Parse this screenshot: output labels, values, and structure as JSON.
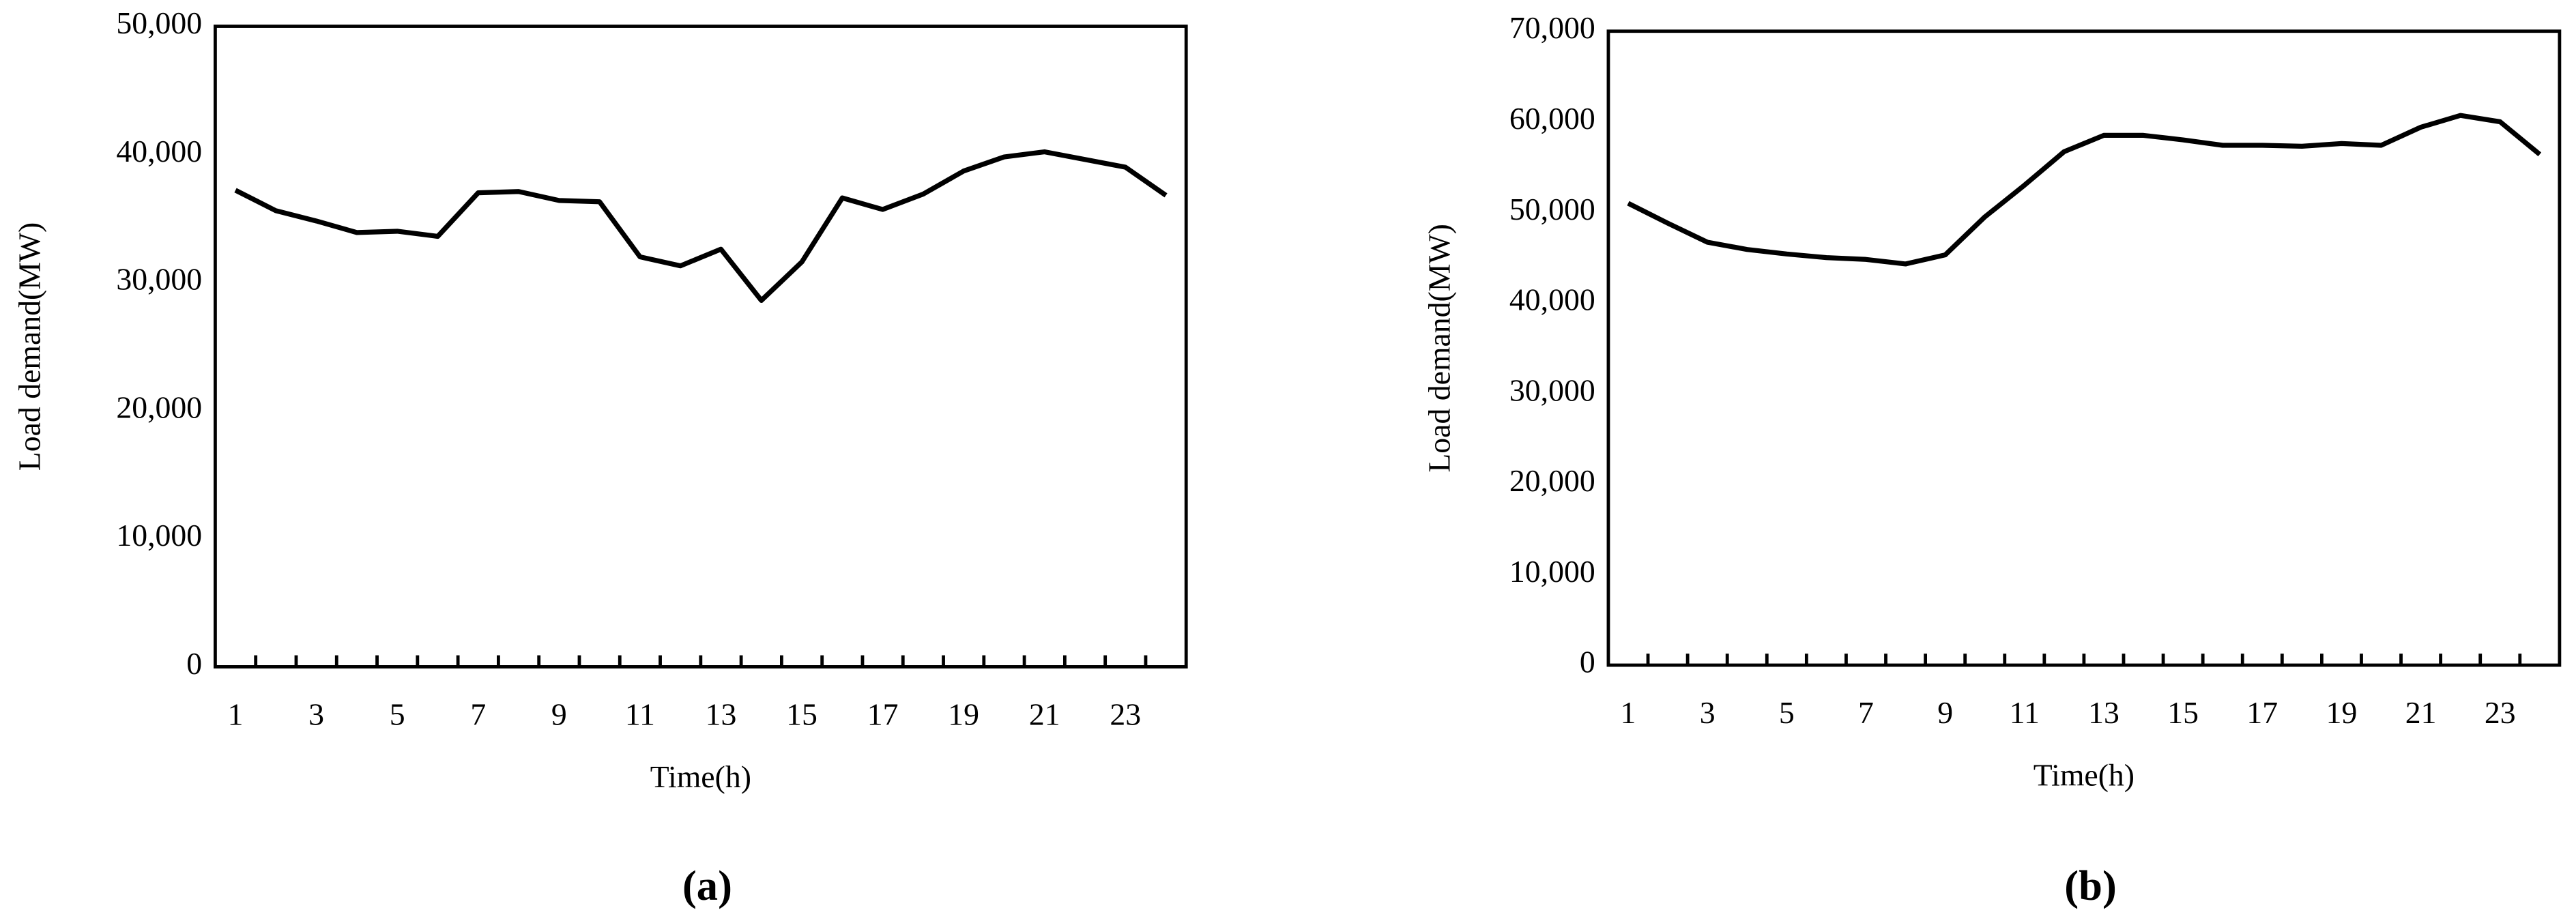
{
  "chart_data": [
    {
      "type": "line",
      "panel_label": "(a)",
      "x_label": "Time(h)",
      "y_label": "Load demand(MW)",
      "categories": [
        "1",
        null,
        "3",
        null,
        "5",
        null,
        "7",
        null,
        "9",
        null,
        "11",
        null,
        "13",
        null,
        "15",
        null,
        "17",
        null,
        "19",
        null,
        "21",
        null,
        "23",
        null
      ],
      "values": [
        37200,
        35600,
        34800,
        33900,
        34000,
        33600,
        37000,
        37100,
        36400,
        36300,
        32000,
        31300,
        32600,
        28600,
        31600,
        36600,
        35700,
        36900,
        38700,
        39800,
        40200,
        39600,
        39000,
        36800
      ],
      "color": "#000000",
      "grid": false,
      "ylim": [
        0,
        50000
      ],
      "yticks": [
        0,
        {
          "value": 10000,
          "label": "10,000"
        },
        {
          "value": 20000,
          "label": "20,000"
        },
        {
          "value": 30000,
          "label": "30,000"
        },
        {
          "value": 40000,
          "label": "40,000"
        },
        {
          "value": 50000,
          "label": "50,000"
        }
      ]
    },
    {
      "type": "line",
      "panel_label": "(b)",
      "x_label": "Time(h)",
      "y_label": "Load demand(MW)",
      "categories": [
        "1",
        null,
        "3",
        null,
        "5",
        null,
        "7",
        null,
        "9",
        null,
        "11",
        null,
        "13",
        null,
        "15",
        null,
        "17",
        null,
        "19",
        null,
        "21",
        null,
        "23",
        null
      ],
      "values": [
        51000,
        48800,
        46700,
        45900,
        45400,
        45000,
        44800,
        44300,
        45300,
        49500,
        53000,
        56700,
        58500,
        58500,
        58000,
        57400,
        57400,
        57300,
        57600,
        57400,
        59400,
        60700,
        60000,
        56400
      ],
      "color": "#000000",
      "grid": false,
      "ylim": [
        0,
        70000
      ],
      "yticks": [
        0,
        {
          "value": 10000,
          "label": "10,000"
        },
        {
          "value": 20000,
          "label": "20,000"
        },
        {
          "value": 30000,
          "label": "30,000"
        },
        {
          "value": 40000,
          "label": "40,000"
        },
        {
          "value": 50000,
          "label": "50,000"
        },
        {
          "value": 60000,
          "label": "60,000"
        },
        {
          "value": 70000,
          "label": "70,000"
        }
      ]
    }
  ]
}
